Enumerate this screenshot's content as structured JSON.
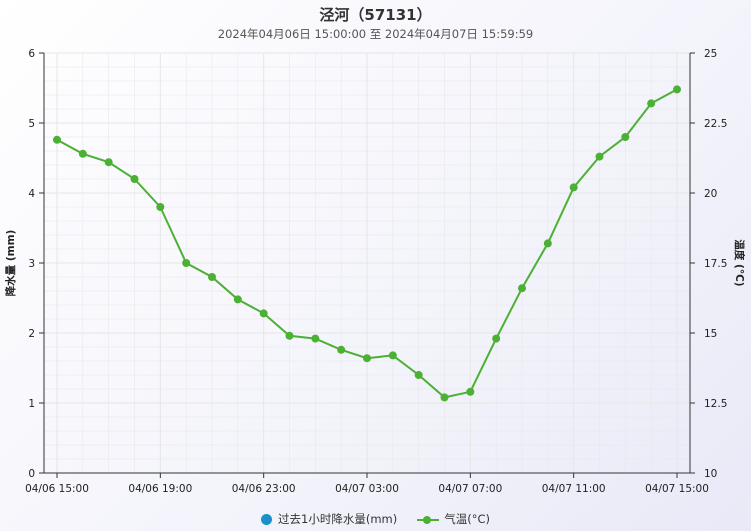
{
  "title": "泾河（57131）",
  "subtitle": "2024年04月06日 15:00:00 至 2024年04月07日 15:59:59",
  "colors": {
    "precip": "#1a8fc9",
    "temp": "#4cb034",
    "grid": "#e6e6e6",
    "axis": "#333333"
  },
  "legend": {
    "precip_label": "过去1小时降水量(mm)",
    "temp_label": "气温(°C)"
  },
  "chart_data": {
    "type": "line",
    "xlabels": [
      "04/06 15:00",
      "04/06 19:00",
      "04/06 23:00",
      "04/07 03:00",
      "04/07 07:00",
      "04/07 11:00",
      "04/07 15:00"
    ],
    "y_left": {
      "label": "降水量 (mm)",
      "min": 0,
      "max": 6,
      "ticks": [
        "0",
        "1",
        "2",
        "3",
        "4",
        "5",
        "6"
      ]
    },
    "y_right": {
      "label": "温度 (°C)",
      "min": 10,
      "max": 25,
      "ticks": [
        "10",
        "12.5",
        "15",
        "17.5",
        "20",
        "22.5",
        "25"
      ]
    },
    "grid": true,
    "legend_position": "bottom-center",
    "series": [
      {
        "name": "气温(°C)",
        "axis": "right",
        "x": [
          "04/06 15:00",
          "04/06 16:00",
          "04/06 17:00",
          "04/06 18:00",
          "04/06 19:00",
          "04/06 20:00",
          "04/06 21:00",
          "04/06 22:00",
          "04/06 23:00",
          "04/07 00:00",
          "04/07 01:00",
          "04/07 02:00",
          "04/07 03:00",
          "04/07 04:00",
          "04/07 05:00",
          "04/07 06:00",
          "04/07 07:00",
          "04/07 08:00",
          "04/07 09:00",
          "04/07 10:00",
          "04/07 11:00",
          "04/07 12:00",
          "04/07 13:00",
          "04/07 14:00",
          "04/07 15:00"
        ],
        "values": [
          21.9,
          21.4,
          21.1,
          20.5,
          19.5,
          17.5,
          17.0,
          16.2,
          15.7,
          14.9,
          14.8,
          14.4,
          14.1,
          14.2,
          13.5,
          12.7,
          12.9,
          14.8,
          16.6,
          18.2,
          20.2,
          21.3,
          22.0,
          23.2,
          23.7
        ]
      },
      {
        "name": "过去1小时降水量(mm)",
        "axis": "left",
        "x": [
          "04/06 15:00",
          "04/06 16:00",
          "04/06 17:00",
          "04/06 18:00",
          "04/06 19:00",
          "04/06 20:00",
          "04/06 21:00",
          "04/06 22:00",
          "04/06 23:00",
          "04/07 00:00",
          "04/07 01:00",
          "04/07 02:00",
          "04/07 03:00",
          "04/07 04:00",
          "04/07 05:00",
          "04/07 06:00",
          "04/07 07:00",
          "04/07 08:00",
          "04/07 09:00",
          "04/07 10:00",
          "04/07 11:00",
          "04/07 12:00",
          "04/07 13:00",
          "04/07 14:00",
          "04/07 15:00"
        ],
        "values": [
          0,
          0,
          0,
          0,
          0,
          0,
          0,
          0,
          0,
          0,
          0,
          0,
          0,
          0,
          0,
          0,
          0,
          0,
          0,
          0,
          0,
          0,
          0,
          0,
          0
        ]
      }
    ]
  }
}
